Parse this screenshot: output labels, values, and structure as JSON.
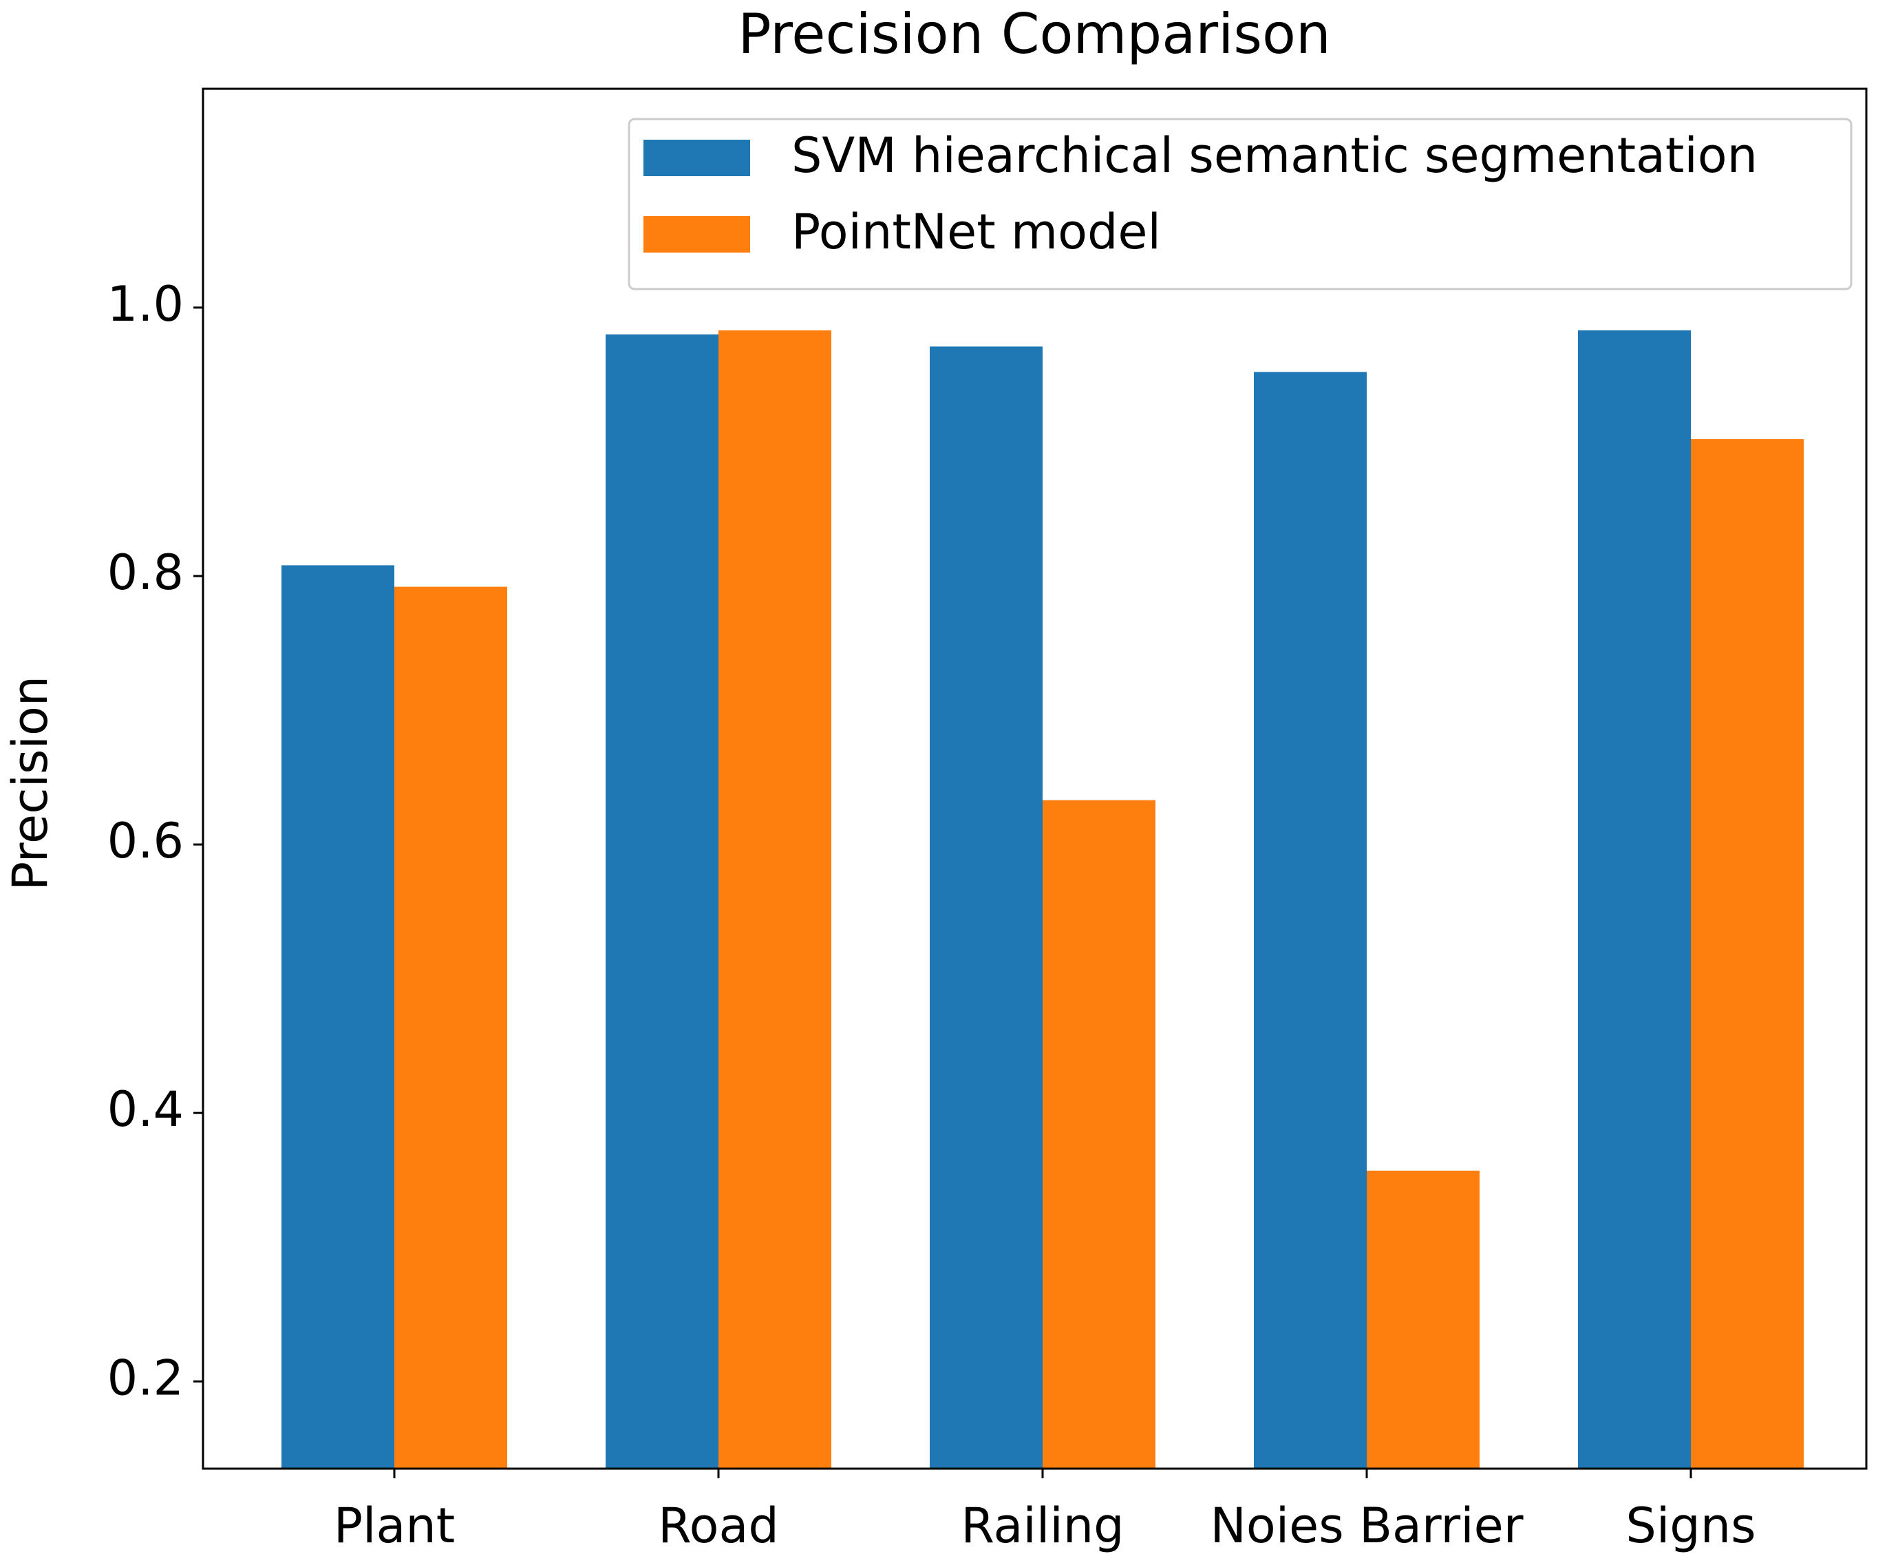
{
  "chart_data": {
    "type": "bar",
    "title": "Precision Comparison",
    "y_label": "Precision",
    "categories": [
      "Plant",
      "Road",
      "Railing",
      "Noies Barrier",
      "Signs"
    ],
    "series": [
      {
        "name": "SVM hiearchical semantic segmentation",
        "color": "#1f77b4",
        "values": [
          0.808,
          0.98,
          0.971,
          0.952,
          0.983
        ]
      },
      {
        "name": "PointNet model",
        "color": "#ff7f0e",
        "values": [
          0.792,
          0.983,
          0.633,
          0.357,
          0.902
        ]
      }
    ],
    "ylim": [
      0.135,
      1.163
    ],
    "yticks": [
      0.2,
      0.4,
      0.6,
      0.8,
      {
        "value": 1.0,
        "label": "1.0"
      }
    ],
    "legend": "upper right",
    "grid": false
  }
}
